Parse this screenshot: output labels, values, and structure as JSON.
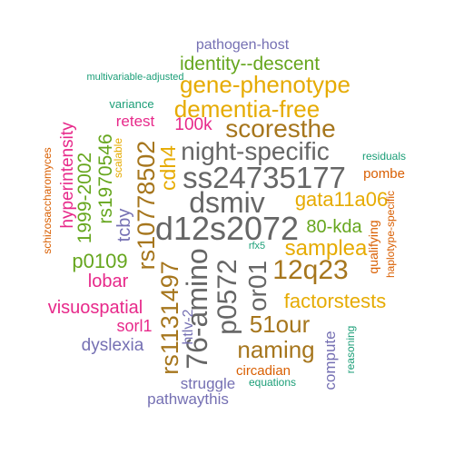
{
  "palette": {
    "green": "#1b9e77",
    "orange": "#d95f02",
    "purple": "#7570b3",
    "magenta": "#e7298a",
    "lime": "#66a61e",
    "gold": "#e6ab02",
    "brown": "#a6761d",
    "gray": "#666666"
  },
  "words": [
    {
      "text": "pathogen-host",
      "color": "#7570b3"
    },
    {
      "text": "identity--descent",
      "color": "#66a61e"
    },
    {
      "text": "multivariable-adjusted",
      "color": "#1b9e77"
    },
    {
      "text": "gene-phenotype",
      "color": "#e6ab02"
    },
    {
      "text": "variance",
      "color": "#1b9e77"
    },
    {
      "text": "dementia-free",
      "color": "#e6ab02"
    },
    {
      "text": "retest",
      "color": "#e7298a"
    },
    {
      "text": "100k",
      "color": "#e7298a"
    },
    {
      "text": "scoresthe",
      "color": "#a6761d"
    },
    {
      "text": "night-specific",
      "color": "#666666"
    },
    {
      "text": "residuals",
      "color": "#1b9e77"
    },
    {
      "text": "ss24735177",
      "color": "#666666"
    },
    {
      "text": "pombe",
      "color": "#d95f02"
    },
    {
      "text": "dsmiv",
      "color": "#666666"
    },
    {
      "text": "gata11a06",
      "color": "#e6ab02"
    },
    {
      "text": "d12s2072",
      "color": "#666666"
    },
    {
      "text": "80-kda",
      "color": "#66a61e"
    },
    {
      "text": "samplea",
      "color": "#e6ab02"
    },
    {
      "text": "12q23",
      "color": "#a6761d"
    },
    {
      "text": "rfx5",
      "color": "#1b9e77"
    },
    {
      "text": "factorstests",
      "color": "#e6ab02"
    },
    {
      "text": "visuospatial",
      "color": "#e7298a"
    },
    {
      "text": "lobar",
      "color": "#e7298a"
    },
    {
      "text": "p0109",
      "color": "#66a61e"
    },
    {
      "text": "sorl1",
      "color": "#e7298a"
    },
    {
      "text": "dyslexia",
      "color": "#7570b3"
    },
    {
      "text": "51our",
      "color": "#a6761d"
    },
    {
      "text": "naming",
      "color": "#a6761d"
    },
    {
      "text": "circadian",
      "color": "#d95f02"
    },
    {
      "text": "struggle",
      "color": "#7570b3"
    },
    {
      "text": "equations",
      "color": "#1b9e77"
    },
    {
      "text": "pathwaythis",
      "color": "#7570b3"
    },
    {
      "text": "schizosaccharomyces",
      "color": "#d95f02"
    },
    {
      "text": "hyperintensity",
      "color": "#e7298a"
    },
    {
      "text": "1999-2002",
      "color": "#66a61e"
    },
    {
      "text": "rs1970546",
      "color": "#66a61e"
    },
    {
      "text": "tcby",
      "color": "#7570b3"
    },
    {
      "text": "scalable",
      "color": "#e6ab02"
    },
    {
      "text": "rs10778502",
      "color": "#a6761d"
    },
    {
      "text": "cdh4",
      "color": "#e6ab02"
    },
    {
      "text": "rs1131497",
      "color": "#a6761d"
    },
    {
      "text": "76-amino",
      "color": "#666666"
    },
    {
      "text": "p0572",
      "color": "#666666"
    },
    {
      "text": "htlv-2",
      "color": "#7570b3"
    },
    {
      "text": "or01",
      "color": "#666666"
    },
    {
      "text": "compute",
      "color": "#7570b3"
    },
    {
      "text": "reasoning",
      "color": "#1b9e77"
    },
    {
      "text": "qualifying",
      "color": "#d95f02"
    },
    {
      "text": "haplotype-specific",
      "color": "#d95f02"
    }
  ]
}
